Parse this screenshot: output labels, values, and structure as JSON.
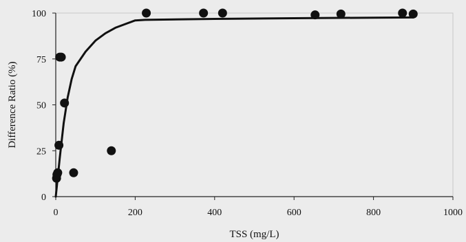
{
  "chart_data": {
    "type": "scatter",
    "title": "",
    "xlabel": "TSS (mg/L)",
    "ylabel": "Difference Ratio (%)",
    "xlim": [
      0,
      1000
    ],
    "ylim": [
      0,
      100
    ],
    "x_ticks": [
      0,
      200,
      400,
      600,
      800,
      1000
    ],
    "y_ticks": [
      0,
      25,
      50,
      75,
      100
    ],
    "x_tick_labels": [
      "0",
      "200",
      "400",
      "600",
      "800",
      "1000"
    ],
    "y_tick_labels": [
      "0",
      "25",
      "50",
      "75",
      "100"
    ],
    "grid": false,
    "legend": "none",
    "series": [
      {
        "kind": "points",
        "color": "#111111",
        "x": [
          2,
          3,
          5,
          8,
          10,
          14,
          22,
          45,
          140,
          228,
          372,
          420,
          653,
          718,
          873,
          900
        ],
        "y": [
          10,
          12,
          13,
          28,
          76,
          76,
          51,
          13,
          25,
          100,
          100,
          100,
          99,
          99.5,
          100,
          99.5
        ]
      },
      {
        "kind": "trend-line",
        "color": "#111111",
        "x": [
          0,
          10,
          20,
          30,
          40,
          50,
          75,
          100,
          125,
          150,
          175,
          200,
          225,
          400,
          600,
          800,
          900
        ],
        "y": [
          0,
          21,
          40,
          54,
          64,
          71,
          79,
          85,
          89,
          92,
          94,
          96,
          96.3,
          96.8,
          97.2,
          97.5,
          97.6
        ]
      }
    ]
  }
}
